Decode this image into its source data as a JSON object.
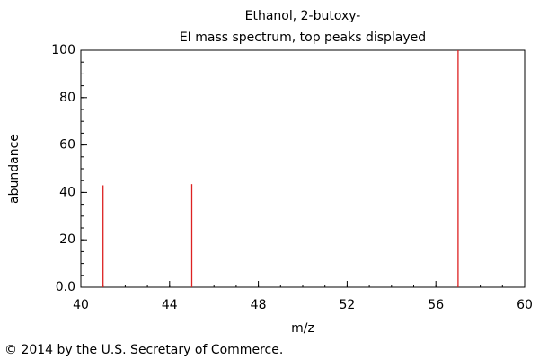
{
  "chart_data": {
    "type": "stick",
    "title": "Ethanol, 2-butoxy-",
    "subtitle": "EI mass spectrum, top peaks displayed",
    "x_label": "m/z",
    "y_label": "abundance",
    "x": [
      41,
      45,
      57
    ],
    "values": [
      43,
      43.5,
      100
    ],
    "color": "#dd2222",
    "xlim": [
      40,
      60
    ],
    "xticks": [
      40,
      44,
      48,
      52,
      56,
      60
    ],
    "ylim": [
      0,
      100
    ],
    "yticks": [
      {
        "value": 0,
        "label": "0.0"
      },
      20,
      40,
      60,
      80,
      100
    ],
    "footer": "© 2014 by the U.S. Secretary of Commerce."
  }
}
